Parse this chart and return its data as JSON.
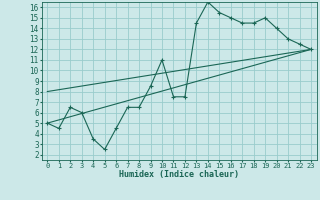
{
  "xlabel": "Humidex (Indice chaleur)",
  "bg_color": "#cce8e8",
  "grid_color": "#99cccc",
  "line_color": "#1a6655",
  "xlim": [
    -0.5,
    23.5
  ],
  "ylim": [
    1.5,
    16.5
  ],
  "xticks": [
    0,
    1,
    2,
    3,
    4,
    5,
    6,
    7,
    8,
    9,
    10,
    11,
    12,
    13,
    14,
    15,
    16,
    17,
    18,
    19,
    20,
    21,
    22,
    23
  ],
  "yticks": [
    2,
    3,
    4,
    5,
    6,
    7,
    8,
    9,
    10,
    11,
    12,
    13,
    14,
    15,
    16
  ],
  "line1_x": [
    0,
    1,
    2,
    3,
    4,
    5,
    6,
    7,
    8,
    9,
    10,
    11,
    12,
    13,
    14,
    15,
    16,
    17,
    18,
    19,
    20,
    21,
    22,
    23
  ],
  "line1_y": [
    5.0,
    4.5,
    6.5,
    6.0,
    3.5,
    2.5,
    4.5,
    6.5,
    6.5,
    8.5,
    11.0,
    7.5,
    7.5,
    14.5,
    16.5,
    15.5,
    15.0,
    14.5,
    14.5,
    15.0,
    14.0,
    13.0,
    12.5,
    12.0
  ],
  "line2_x": [
    0,
    23
  ],
  "line2_y": [
    5.0,
    12.0
  ],
  "line3_x": [
    0,
    23
  ],
  "line3_y": [
    8.0,
    12.0
  ],
  "xlabel_fontsize": 6.0,
  "tick_fontsize_x": 5.0,
  "tick_fontsize_y": 5.5
}
